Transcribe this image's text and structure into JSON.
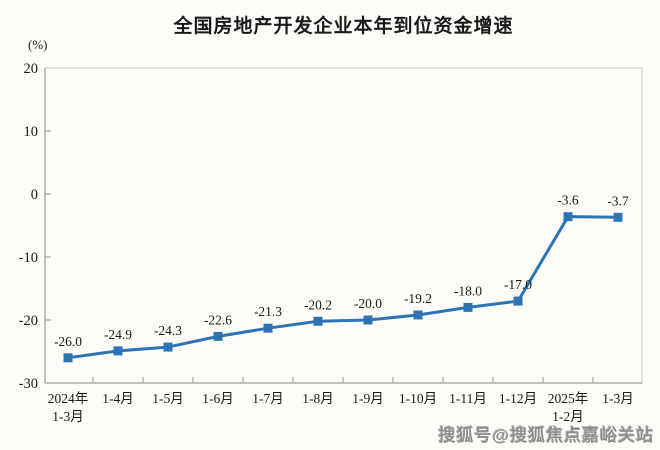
{
  "chart_data": {
    "type": "line",
    "title": "全国房地产开发企业本年到位资金增速",
    "unit_label": "(%)",
    "categories": [
      [
        "2024年",
        "1-3月"
      ],
      [
        "1-4月"
      ],
      [
        "1-5月"
      ],
      [
        "1-6月"
      ],
      [
        "1-7月"
      ],
      [
        "1-8月"
      ],
      [
        "1-9月"
      ],
      [
        "1-10月"
      ],
      [
        "1-11月"
      ],
      [
        "1-12月"
      ],
      [
        "2025年",
        "1-2月"
      ],
      [
        "1-3月"
      ]
    ],
    "values": [
      -26.0,
      -24.9,
      -24.3,
      -22.6,
      -21.3,
      -20.2,
      -20.0,
      -19.2,
      -18.0,
      -17.0,
      -3.6,
      -3.7
    ],
    "data_labels": [
      "-26.0",
      "-24.9",
      "-24.3",
      "-22.6",
      "-21.3",
      "-20.2",
      "-20.0",
      "-19.2",
      "-18.0",
      "-17.0",
      "-3.6",
      "-3.7"
    ],
    "ylim": [
      -30,
      20
    ],
    "yticks": [
      20,
      10,
      0,
      -10,
      -20,
      -30
    ],
    "grid": false,
    "legend": null,
    "line_color": "#2E74B5",
    "marker_shape": "square",
    "axis_color": "#ababab",
    "border_color": "#d9d9d9",
    "label_color": "#1a1a1a"
  },
  "watermark": {
    "text": "搜狐号@搜狐焦点嘉峪关站"
  }
}
